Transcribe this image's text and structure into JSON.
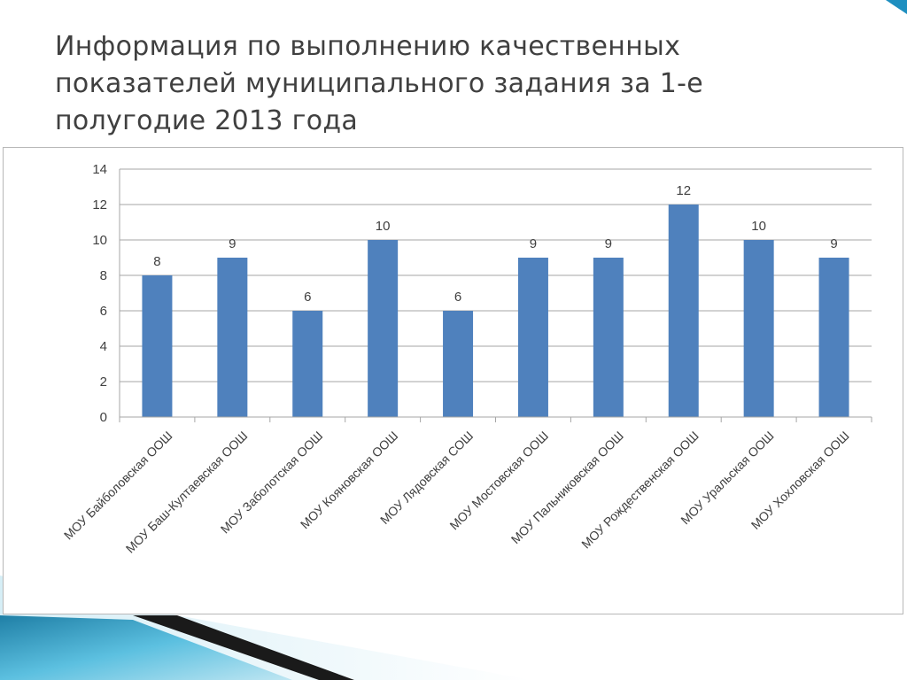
{
  "slide": {
    "title_lines": [
      "Информация по выполнению качественных",
      "показателей муниципального задания за 1-е",
      "полугодие 2013 года"
    ]
  },
  "colors": {
    "bar": "#4f81bd",
    "grid": "#a6a6a6",
    "axis_text": "#404040",
    "decor_blue": "#2f8fb5",
    "decor_dark": "#1a1a1a"
  },
  "chart_data": {
    "type": "bar",
    "title": "",
    "xlabel": "",
    "ylabel": "",
    "ylim": [
      0,
      14
    ],
    "yticks": [
      0,
      2,
      4,
      6,
      8,
      10,
      12,
      14
    ],
    "grid": true,
    "legend": "none",
    "data_labels": true,
    "categories": [
      "МОУ Байболовская ООШ",
      "МОУ Баш-Култаевская ООШ",
      "МОУ Заболотская ООШ",
      "МОУ Кояновская ООШ",
      "МОУ Лядовская СОШ",
      "МОУ Мостовская ООШ",
      "МОУ Пальниковская ООШ",
      "МОУ Рождественская ООШ",
      "МОУ Уральская ООШ",
      "МОУ Хохловская ООШ"
    ],
    "values": [
      8,
      9,
      6,
      10,
      6,
      9,
      9,
      12,
      10,
      9
    ]
  }
}
